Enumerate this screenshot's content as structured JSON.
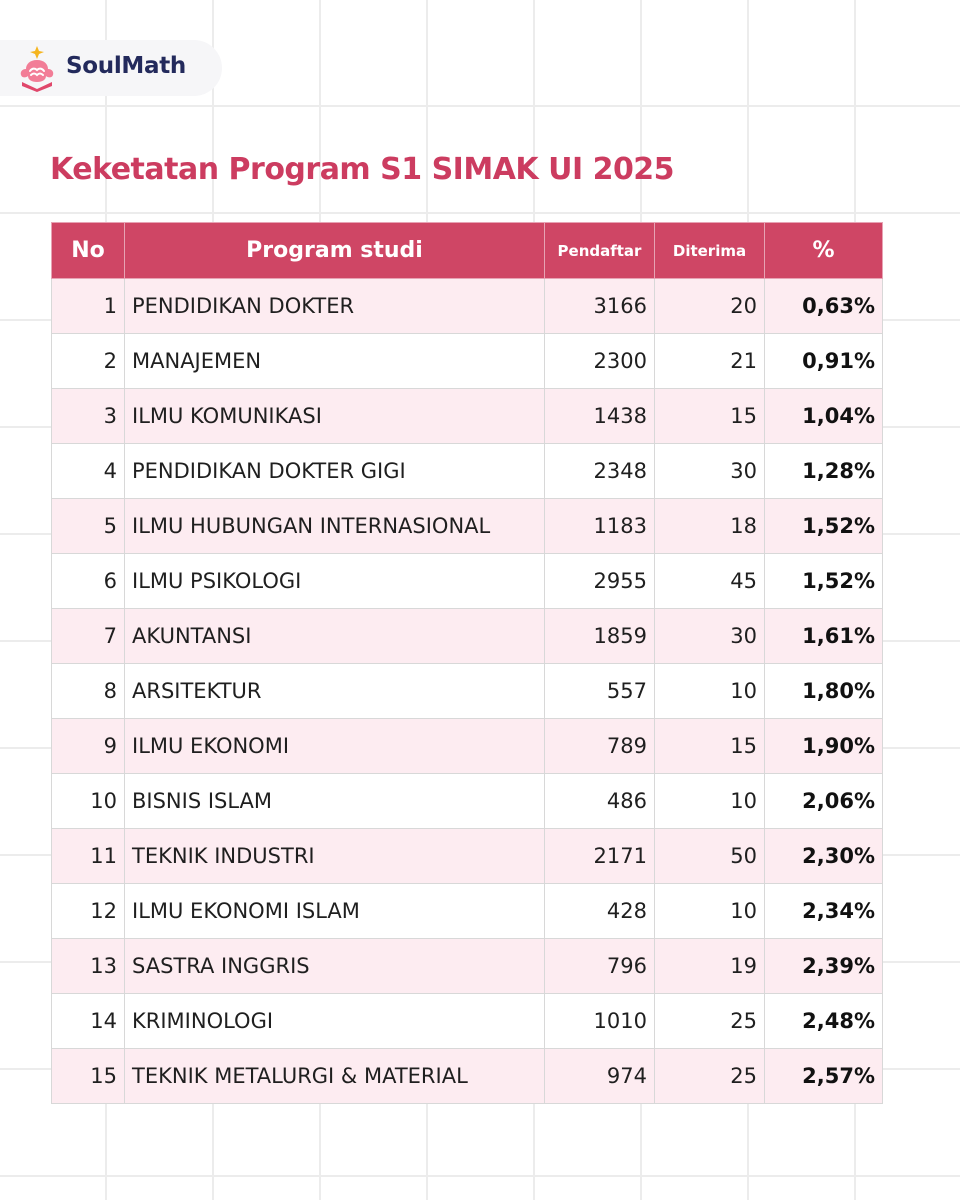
{
  "brand": {
    "name": "SoulMath",
    "primary_color": "#cc3c60",
    "navy_color": "#232a5c"
  },
  "title": "Keketatan Program S1 SIMAK UI 2025",
  "table": {
    "headers": {
      "no": "No",
      "program": "Program studi",
      "pendaftar": "Pendaftar",
      "diterima": "Diterima",
      "pct": "%"
    },
    "rows": [
      {
        "no": "1",
        "program": "PENDIDIKAN DOKTER",
        "pendaftar": "3166",
        "diterima": "20",
        "pct": "0,63%"
      },
      {
        "no": "2",
        "program": "MANAJEMEN",
        "pendaftar": "2300",
        "diterima": "21",
        "pct": "0,91%"
      },
      {
        "no": "3",
        "program": "ILMU KOMUNIKASI",
        "pendaftar": "1438",
        "diterima": "15",
        "pct": "1,04%"
      },
      {
        "no": "4",
        "program": "PENDIDIKAN DOKTER GIGI",
        "pendaftar": "2348",
        "diterima": "30",
        "pct": "1,28%"
      },
      {
        "no": "5",
        "program": "ILMU HUBUNGAN INTERNASIONAL",
        "pendaftar": "1183",
        "diterima": "18",
        "pct": "1,52%"
      },
      {
        "no": "6",
        "program": "ILMU PSIKOLOGI",
        "pendaftar": "2955",
        "diterima": "45",
        "pct": "1,52%"
      },
      {
        "no": "7",
        "program": "AKUNTANSI",
        "pendaftar": "1859",
        "diterima": "30",
        "pct": "1,61%"
      },
      {
        "no": "8",
        "program": "ARSITEKTUR",
        "pendaftar": "557",
        "diterima": "10",
        "pct": "1,80%"
      },
      {
        "no": "9",
        "program": "ILMU EKONOMI",
        "pendaftar": "789",
        "diterima": "15",
        "pct": "1,90%"
      },
      {
        "no": "10",
        "program": "BISNIS ISLAM",
        "pendaftar": "486",
        "diterima": "10",
        "pct": "2,06%"
      },
      {
        "no": "11",
        "program": "TEKNIK INDUSTRI",
        "pendaftar": "2171",
        "diterima": "50",
        "pct": "2,30%"
      },
      {
        "no": "12",
        "program": "ILMU EKONOMI ISLAM",
        "pendaftar": "428",
        "diterima": "10",
        "pct": "2,34%"
      },
      {
        "no": "13",
        "program": "SASTRA INGGRIS",
        "pendaftar": "796",
        "diterima": "19",
        "pct": "2,39%"
      },
      {
        "no": "14",
        "program": "KRIMINOLOGI",
        "pendaftar": "1010",
        "diterima": "25",
        "pct": "2,48%"
      },
      {
        "no": "15",
        "program": "TEKNIK METALURGI & MATERIAL",
        "pendaftar": "974",
        "diterima": "25",
        "pct": "2,57%"
      }
    ]
  }
}
